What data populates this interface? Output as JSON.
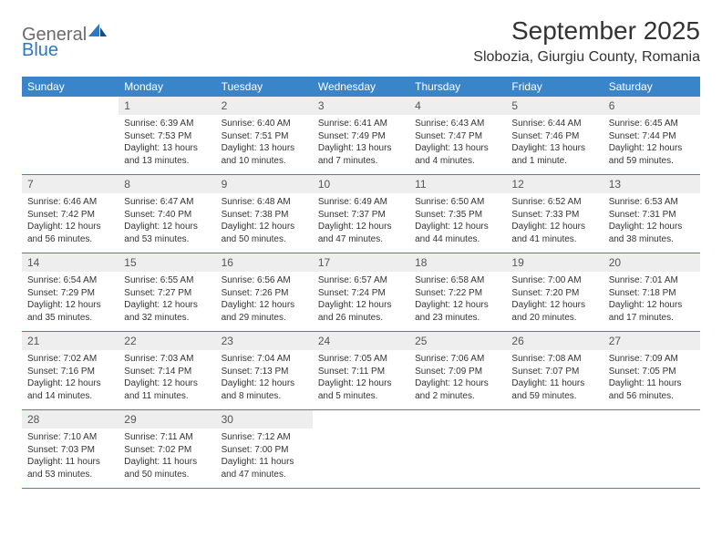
{
  "logo": {
    "word1": "General",
    "word2": "Blue"
  },
  "title": "September 2025",
  "location": "Slobozia, Giurgiu County, Romania",
  "colors": {
    "header_bg": "#3a85c9",
    "header_fg": "#ffffff",
    "daynum_bg": "#eeeeee",
    "daynum_fg": "#555555",
    "rule": "#3a85c9",
    "logo_gray": "#6a6a6a",
    "logo_blue": "#2f78bd"
  },
  "weekdays": [
    "Sunday",
    "Monday",
    "Tuesday",
    "Wednesday",
    "Thursday",
    "Friday",
    "Saturday"
  ],
  "weeks": [
    {
      "nums": [
        "",
        "1",
        "2",
        "3",
        "4",
        "5",
        "6"
      ],
      "cells": [
        [
          "",
          "",
          "",
          ""
        ],
        [
          "Sunrise: 6:39 AM",
          "Sunset: 7:53 PM",
          "Daylight: 13 hours",
          "and 13 minutes."
        ],
        [
          "Sunrise: 6:40 AM",
          "Sunset: 7:51 PM",
          "Daylight: 13 hours",
          "and 10 minutes."
        ],
        [
          "Sunrise: 6:41 AM",
          "Sunset: 7:49 PM",
          "Daylight: 13 hours",
          "and 7 minutes."
        ],
        [
          "Sunrise: 6:43 AM",
          "Sunset: 7:47 PM",
          "Daylight: 13 hours",
          "and 4 minutes."
        ],
        [
          "Sunrise: 6:44 AM",
          "Sunset: 7:46 PM",
          "Daylight: 13 hours",
          "and 1 minute."
        ],
        [
          "Sunrise: 6:45 AM",
          "Sunset: 7:44 PM",
          "Daylight: 12 hours",
          "and 59 minutes."
        ]
      ]
    },
    {
      "nums": [
        "7",
        "8",
        "9",
        "10",
        "11",
        "12",
        "13"
      ],
      "cells": [
        [
          "Sunrise: 6:46 AM",
          "Sunset: 7:42 PM",
          "Daylight: 12 hours",
          "and 56 minutes."
        ],
        [
          "Sunrise: 6:47 AM",
          "Sunset: 7:40 PM",
          "Daylight: 12 hours",
          "and 53 minutes."
        ],
        [
          "Sunrise: 6:48 AM",
          "Sunset: 7:38 PM",
          "Daylight: 12 hours",
          "and 50 minutes."
        ],
        [
          "Sunrise: 6:49 AM",
          "Sunset: 7:37 PM",
          "Daylight: 12 hours",
          "and 47 minutes."
        ],
        [
          "Sunrise: 6:50 AM",
          "Sunset: 7:35 PM",
          "Daylight: 12 hours",
          "and 44 minutes."
        ],
        [
          "Sunrise: 6:52 AM",
          "Sunset: 7:33 PM",
          "Daylight: 12 hours",
          "and 41 minutes."
        ],
        [
          "Sunrise: 6:53 AM",
          "Sunset: 7:31 PM",
          "Daylight: 12 hours",
          "and 38 minutes."
        ]
      ]
    },
    {
      "nums": [
        "14",
        "15",
        "16",
        "17",
        "18",
        "19",
        "20"
      ],
      "cells": [
        [
          "Sunrise: 6:54 AM",
          "Sunset: 7:29 PM",
          "Daylight: 12 hours",
          "and 35 minutes."
        ],
        [
          "Sunrise: 6:55 AM",
          "Sunset: 7:27 PM",
          "Daylight: 12 hours",
          "and 32 minutes."
        ],
        [
          "Sunrise: 6:56 AM",
          "Sunset: 7:26 PM",
          "Daylight: 12 hours",
          "and 29 minutes."
        ],
        [
          "Sunrise: 6:57 AM",
          "Sunset: 7:24 PM",
          "Daylight: 12 hours",
          "and 26 minutes."
        ],
        [
          "Sunrise: 6:58 AM",
          "Sunset: 7:22 PM",
          "Daylight: 12 hours",
          "and 23 minutes."
        ],
        [
          "Sunrise: 7:00 AM",
          "Sunset: 7:20 PM",
          "Daylight: 12 hours",
          "and 20 minutes."
        ],
        [
          "Sunrise: 7:01 AM",
          "Sunset: 7:18 PM",
          "Daylight: 12 hours",
          "and 17 minutes."
        ]
      ]
    },
    {
      "nums": [
        "21",
        "22",
        "23",
        "24",
        "25",
        "26",
        "27"
      ],
      "cells": [
        [
          "Sunrise: 7:02 AM",
          "Sunset: 7:16 PM",
          "Daylight: 12 hours",
          "and 14 minutes."
        ],
        [
          "Sunrise: 7:03 AM",
          "Sunset: 7:14 PM",
          "Daylight: 12 hours",
          "and 11 minutes."
        ],
        [
          "Sunrise: 7:04 AM",
          "Sunset: 7:13 PM",
          "Daylight: 12 hours",
          "and 8 minutes."
        ],
        [
          "Sunrise: 7:05 AM",
          "Sunset: 7:11 PM",
          "Daylight: 12 hours",
          "and 5 minutes."
        ],
        [
          "Sunrise: 7:06 AM",
          "Sunset: 7:09 PM",
          "Daylight: 12 hours",
          "and 2 minutes."
        ],
        [
          "Sunrise: 7:08 AM",
          "Sunset: 7:07 PM",
          "Daylight: 11 hours",
          "and 59 minutes."
        ],
        [
          "Sunrise: 7:09 AM",
          "Sunset: 7:05 PM",
          "Daylight: 11 hours",
          "and 56 minutes."
        ]
      ]
    },
    {
      "nums": [
        "28",
        "29",
        "30",
        "",
        "",
        "",
        ""
      ],
      "cells": [
        [
          "Sunrise: 7:10 AM",
          "Sunset: 7:03 PM",
          "Daylight: 11 hours",
          "and 53 minutes."
        ],
        [
          "Sunrise: 7:11 AM",
          "Sunset: 7:02 PM",
          "Daylight: 11 hours",
          "and 50 minutes."
        ],
        [
          "Sunrise: 7:12 AM",
          "Sunset: 7:00 PM",
          "Daylight: 11 hours",
          "and 47 minutes."
        ],
        [
          "",
          "",
          "",
          ""
        ],
        [
          "",
          "",
          "",
          ""
        ],
        [
          "",
          "",
          "",
          ""
        ],
        [
          "",
          "",
          "",
          ""
        ]
      ]
    }
  ]
}
